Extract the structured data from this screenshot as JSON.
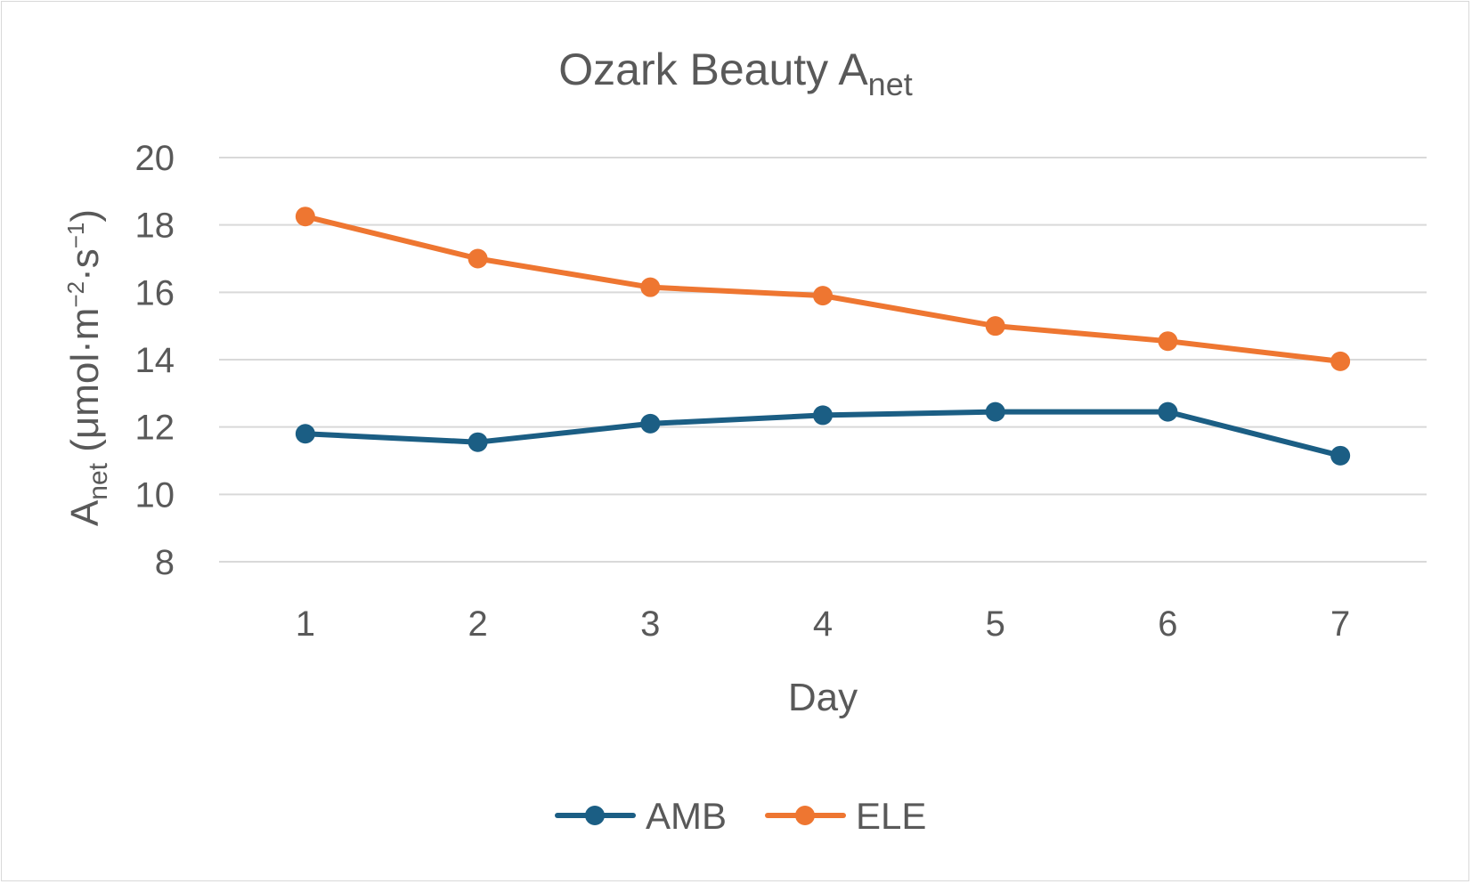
{
  "chart_data": {
    "type": "line",
    "title": {
      "main": "Ozark Beauty A",
      "sub": "net"
    },
    "xlabel": "Day",
    "ylabel": {
      "base": "A",
      "base_sub": "net",
      "unit_open": " (μmol·m",
      "sup1": "−2",
      "unit_mid": "·s",
      "sup2": "−1",
      "unit_close": ")"
    },
    "categories": [
      "1",
      "2",
      "3",
      "4",
      "5",
      "6",
      "7"
    ],
    "ylim": [
      8,
      20
    ],
    "yticks": [
      "8",
      "10",
      "12",
      "14",
      "16",
      "18",
      "20"
    ],
    "grid": true,
    "legend_position": "bottom",
    "series": [
      {
        "name": "AMB",
        "color": "#1b5e84",
        "values": [
          11.8,
          11.55,
          12.1,
          12.35,
          12.45,
          12.45,
          11.15
        ]
      },
      {
        "name": "ELE",
        "color": "#ee7631",
        "values": [
          18.25,
          17.0,
          16.15,
          15.9,
          15.0,
          14.55,
          13.95
        ]
      }
    ]
  }
}
